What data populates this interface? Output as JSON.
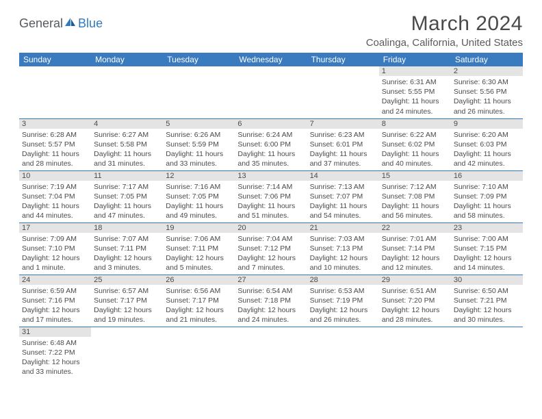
{
  "logo": {
    "general": "General",
    "blue": "Blue"
  },
  "title": "March 2024",
  "location": "Coalinga, California, United States",
  "headers": [
    "Sunday",
    "Monday",
    "Tuesday",
    "Wednesday",
    "Thursday",
    "Friday",
    "Saturday"
  ],
  "colors": {
    "header_bg": "#3a7bbf",
    "header_text": "#ffffff",
    "daynum_bg": "#e4e4e4",
    "border": "#2f7bbf",
    "text": "#4a4a4a"
  },
  "weeks": [
    [
      null,
      null,
      null,
      null,
      null,
      {
        "n": "1",
        "sr": "Sunrise: 6:31 AM",
        "ss": "Sunset: 5:55 PM",
        "d1": "Daylight: 11 hours",
        "d2": "and 24 minutes."
      },
      {
        "n": "2",
        "sr": "Sunrise: 6:30 AM",
        "ss": "Sunset: 5:56 PM",
        "d1": "Daylight: 11 hours",
        "d2": "and 26 minutes."
      }
    ],
    [
      {
        "n": "3",
        "sr": "Sunrise: 6:28 AM",
        "ss": "Sunset: 5:57 PM",
        "d1": "Daylight: 11 hours",
        "d2": "and 28 minutes."
      },
      {
        "n": "4",
        "sr": "Sunrise: 6:27 AM",
        "ss": "Sunset: 5:58 PM",
        "d1": "Daylight: 11 hours",
        "d2": "and 31 minutes."
      },
      {
        "n": "5",
        "sr": "Sunrise: 6:26 AM",
        "ss": "Sunset: 5:59 PM",
        "d1": "Daylight: 11 hours",
        "d2": "and 33 minutes."
      },
      {
        "n": "6",
        "sr": "Sunrise: 6:24 AM",
        "ss": "Sunset: 6:00 PM",
        "d1": "Daylight: 11 hours",
        "d2": "and 35 minutes."
      },
      {
        "n": "7",
        "sr": "Sunrise: 6:23 AM",
        "ss": "Sunset: 6:01 PM",
        "d1": "Daylight: 11 hours",
        "d2": "and 37 minutes."
      },
      {
        "n": "8",
        "sr": "Sunrise: 6:22 AM",
        "ss": "Sunset: 6:02 PM",
        "d1": "Daylight: 11 hours",
        "d2": "and 40 minutes."
      },
      {
        "n": "9",
        "sr": "Sunrise: 6:20 AM",
        "ss": "Sunset: 6:03 PM",
        "d1": "Daylight: 11 hours",
        "d2": "and 42 minutes."
      }
    ],
    [
      {
        "n": "10",
        "sr": "Sunrise: 7:19 AM",
        "ss": "Sunset: 7:04 PM",
        "d1": "Daylight: 11 hours",
        "d2": "and 44 minutes."
      },
      {
        "n": "11",
        "sr": "Sunrise: 7:17 AM",
        "ss": "Sunset: 7:05 PM",
        "d1": "Daylight: 11 hours",
        "d2": "and 47 minutes."
      },
      {
        "n": "12",
        "sr": "Sunrise: 7:16 AM",
        "ss": "Sunset: 7:05 PM",
        "d1": "Daylight: 11 hours",
        "d2": "and 49 minutes."
      },
      {
        "n": "13",
        "sr": "Sunrise: 7:14 AM",
        "ss": "Sunset: 7:06 PM",
        "d1": "Daylight: 11 hours",
        "d2": "and 51 minutes."
      },
      {
        "n": "14",
        "sr": "Sunrise: 7:13 AM",
        "ss": "Sunset: 7:07 PM",
        "d1": "Daylight: 11 hours",
        "d2": "and 54 minutes."
      },
      {
        "n": "15",
        "sr": "Sunrise: 7:12 AM",
        "ss": "Sunset: 7:08 PM",
        "d1": "Daylight: 11 hours",
        "d2": "and 56 minutes."
      },
      {
        "n": "16",
        "sr": "Sunrise: 7:10 AM",
        "ss": "Sunset: 7:09 PM",
        "d1": "Daylight: 11 hours",
        "d2": "and 58 minutes."
      }
    ],
    [
      {
        "n": "17",
        "sr": "Sunrise: 7:09 AM",
        "ss": "Sunset: 7:10 PM",
        "d1": "Daylight: 12 hours",
        "d2": "and 1 minute."
      },
      {
        "n": "18",
        "sr": "Sunrise: 7:07 AM",
        "ss": "Sunset: 7:11 PM",
        "d1": "Daylight: 12 hours",
        "d2": "and 3 minutes."
      },
      {
        "n": "19",
        "sr": "Sunrise: 7:06 AM",
        "ss": "Sunset: 7:11 PM",
        "d1": "Daylight: 12 hours",
        "d2": "and 5 minutes."
      },
      {
        "n": "20",
        "sr": "Sunrise: 7:04 AM",
        "ss": "Sunset: 7:12 PM",
        "d1": "Daylight: 12 hours",
        "d2": "and 7 minutes."
      },
      {
        "n": "21",
        "sr": "Sunrise: 7:03 AM",
        "ss": "Sunset: 7:13 PM",
        "d1": "Daylight: 12 hours",
        "d2": "and 10 minutes."
      },
      {
        "n": "22",
        "sr": "Sunrise: 7:01 AM",
        "ss": "Sunset: 7:14 PM",
        "d1": "Daylight: 12 hours",
        "d2": "and 12 minutes."
      },
      {
        "n": "23",
        "sr": "Sunrise: 7:00 AM",
        "ss": "Sunset: 7:15 PM",
        "d1": "Daylight: 12 hours",
        "d2": "and 14 minutes."
      }
    ],
    [
      {
        "n": "24",
        "sr": "Sunrise: 6:59 AM",
        "ss": "Sunset: 7:16 PM",
        "d1": "Daylight: 12 hours",
        "d2": "and 17 minutes."
      },
      {
        "n": "25",
        "sr": "Sunrise: 6:57 AM",
        "ss": "Sunset: 7:17 PM",
        "d1": "Daylight: 12 hours",
        "d2": "and 19 minutes."
      },
      {
        "n": "26",
        "sr": "Sunrise: 6:56 AM",
        "ss": "Sunset: 7:17 PM",
        "d1": "Daylight: 12 hours",
        "d2": "and 21 minutes."
      },
      {
        "n": "27",
        "sr": "Sunrise: 6:54 AM",
        "ss": "Sunset: 7:18 PM",
        "d1": "Daylight: 12 hours",
        "d2": "and 24 minutes."
      },
      {
        "n": "28",
        "sr": "Sunrise: 6:53 AM",
        "ss": "Sunset: 7:19 PM",
        "d1": "Daylight: 12 hours",
        "d2": "and 26 minutes."
      },
      {
        "n": "29",
        "sr": "Sunrise: 6:51 AM",
        "ss": "Sunset: 7:20 PM",
        "d1": "Daylight: 12 hours",
        "d2": "and 28 minutes."
      },
      {
        "n": "30",
        "sr": "Sunrise: 6:50 AM",
        "ss": "Sunset: 7:21 PM",
        "d1": "Daylight: 12 hours",
        "d2": "and 30 minutes."
      }
    ],
    [
      {
        "n": "31",
        "sr": "Sunrise: 6:48 AM",
        "ss": "Sunset: 7:22 PM",
        "d1": "Daylight: 12 hours",
        "d2": "and 33 minutes."
      },
      null,
      null,
      null,
      null,
      null,
      null
    ]
  ]
}
